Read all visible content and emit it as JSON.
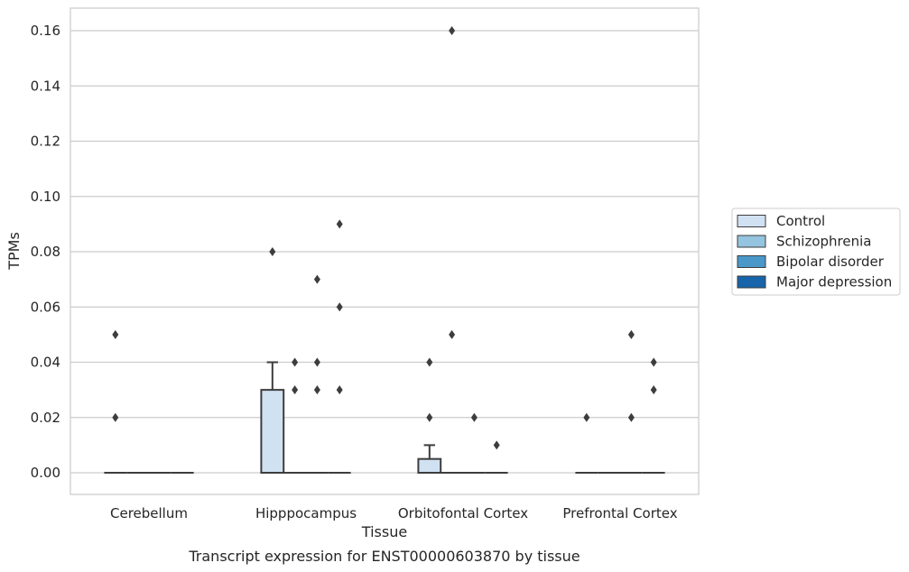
{
  "chart_data": {
    "type": "box",
    "xlabel": "Tissue",
    "ylabel": "TPMs",
    "caption": "Transcript expression for ENST00000603870 by tissue",
    "ylim": [
      -0.008,
      0.168
    ],
    "yticks": [
      "0.00",
      "0.02",
      "0.04",
      "0.06",
      "0.08",
      "0.10",
      "0.12",
      "0.14",
      "0.16"
    ],
    "grid": true,
    "legend_position": "right",
    "categories": [
      "Cerebellum",
      "Hipppocampus",
      "Orbitofontal Cortex",
      "Prefrontal Cortex"
    ],
    "series": [
      {
        "name": "Control",
        "color": "#d0e1f2"
      },
      {
        "name": "Schizophrenia",
        "color": "#94c4df"
      },
      {
        "name": "Bipolar disorder",
        "color": "#4a98c9"
      },
      {
        "name": "Major depression",
        "color": "#1764ab"
      }
    ],
    "boxes": [
      [
        {
          "q1": 0,
          "median": 0,
          "q3": 0,
          "whislo": 0,
          "whishi": 0,
          "fliers": [
            0.02,
            0.05
          ]
        },
        {
          "q1": 0,
          "median": 0,
          "q3": 0,
          "whislo": 0,
          "whishi": 0,
          "fliers": []
        },
        {
          "q1": 0,
          "median": 0,
          "q3": 0,
          "whislo": 0,
          "whishi": 0,
          "fliers": []
        },
        {
          "q1": 0,
          "median": 0,
          "q3": 0,
          "whislo": 0,
          "whishi": 0,
          "fliers": []
        }
      ],
      [
        {
          "q1": 0,
          "median": 0,
          "q3": 0.03,
          "whislo": 0,
          "whishi": 0.04,
          "fliers": [
            0.08
          ]
        },
        {
          "q1": 0,
          "median": 0,
          "q3": 0,
          "whislo": 0,
          "whishi": 0,
          "fliers": [
            0.03,
            0.04
          ]
        },
        {
          "q1": 0,
          "median": 0,
          "q3": 0,
          "whislo": 0,
          "whishi": 0,
          "fliers": [
            0.03,
            0.04,
            0.07
          ]
        },
        {
          "q1": 0,
          "median": 0,
          "q3": 0,
          "whislo": 0,
          "whishi": 0,
          "fliers": [
            0.03,
            0.06,
            0.09
          ]
        }
      ],
      [
        {
          "q1": 0,
          "median": 0,
          "q3": 0.005,
          "whislo": 0,
          "whishi": 0.01,
          "fliers": [
            0.02,
            0.04
          ]
        },
        {
          "q1": 0,
          "median": 0,
          "q3": 0,
          "whislo": 0,
          "whishi": 0,
          "fliers": [
            0.05,
            0.16
          ]
        },
        {
          "q1": 0,
          "median": 0,
          "q3": 0,
          "whislo": 0,
          "whishi": 0,
          "fliers": [
            0.02
          ]
        },
        {
          "q1": 0,
          "median": 0,
          "q3": 0,
          "whislo": 0,
          "whishi": 0,
          "fliers": [
            0.01
          ]
        }
      ],
      [
        {
          "q1": 0,
          "median": 0,
          "q3": 0,
          "whislo": 0,
          "whishi": 0,
          "fliers": [
            0.02
          ]
        },
        {
          "q1": 0,
          "median": 0,
          "q3": 0,
          "whislo": 0,
          "whishi": 0,
          "fliers": []
        },
        {
          "q1": 0,
          "median": 0,
          "q3": 0,
          "whislo": 0,
          "whishi": 0,
          "fliers": [
            0.02,
            0.05
          ]
        },
        {
          "q1": 0,
          "median": 0,
          "q3": 0,
          "whislo": 0,
          "whishi": 0,
          "fliers": [
            0.03,
            0.04
          ]
        }
      ]
    ]
  }
}
